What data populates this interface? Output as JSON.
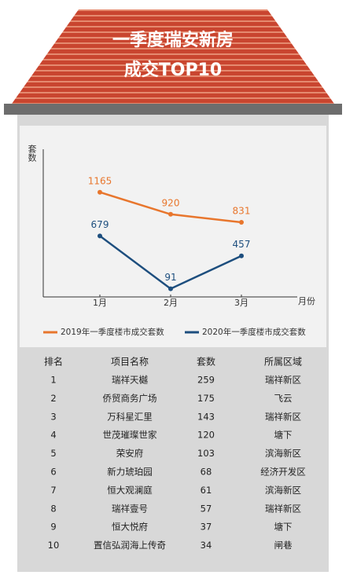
{
  "header": {
    "title_lines": [
      "一季度瑞安新房",
      "成交TOP10"
    ]
  },
  "chart_data": {
    "type": "line",
    "y_label": "套数",
    "x_label": "月份",
    "categories": [
      "1月",
      "2月",
      "3月"
    ],
    "series": [
      {
        "name": "2019年一季度楼市成交套数",
        "color": "#e8762d",
        "values": [
          1165,
          920,
          831
        ]
      },
      {
        "name": "2020年一季度楼市成交套数",
        "color": "#1d4e7e",
        "values": [
          679,
          91,
          457
        ]
      }
    ],
    "ylim": [
      0,
      1600
    ]
  },
  "table": {
    "columns": [
      "排名",
      "项目名称",
      "套数",
      "所属区域"
    ],
    "rows": [
      [
        1,
        "瑞祥天樾",
        259,
        "瑞祥新区"
      ],
      [
        2,
        "侨贸商务广场",
        175,
        "飞云"
      ],
      [
        3,
        "万科星汇里",
        143,
        "瑞祥新区"
      ],
      [
        4,
        "世茂璀璨世家",
        120,
        "塘下"
      ],
      [
        5,
        "荣安府",
        103,
        "滨海新区"
      ],
      [
        6,
        "新力琥珀园",
        68,
        "经济开发区"
      ],
      [
        7,
        "恒大观澜庭",
        61,
        "滨海新区"
      ],
      [
        8,
        "瑞祥壹号",
        57,
        "瑞祥新区"
      ],
      [
        9,
        "恒大悦府",
        37,
        "塘下"
      ],
      [
        10,
        "置信弘润海上传奇",
        34,
        "闸巷"
      ]
    ]
  }
}
